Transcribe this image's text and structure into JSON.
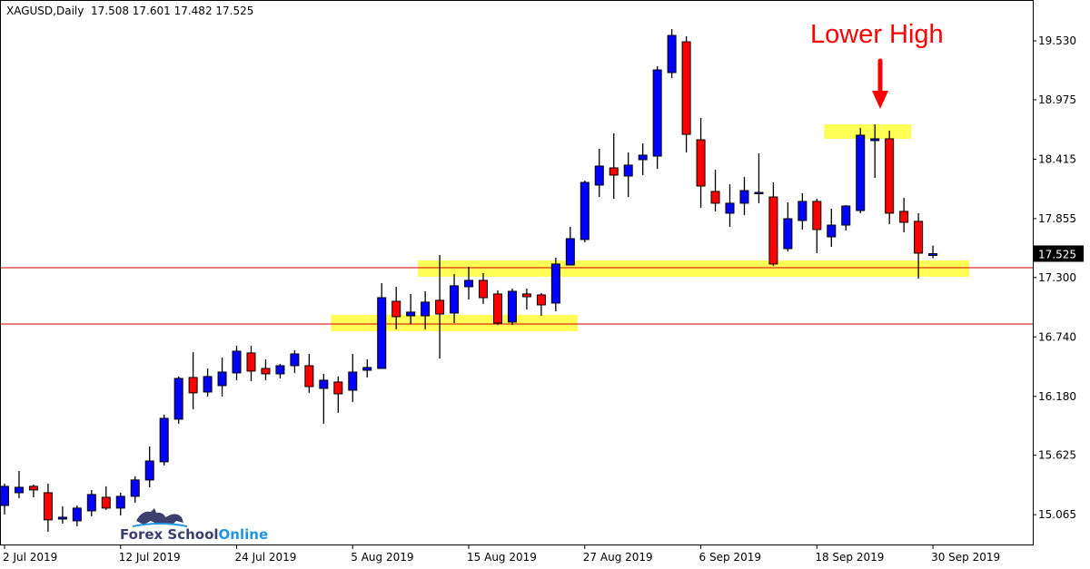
{
  "header": {
    "symbol": "XAGUSD,Daily",
    "ohlc": "17.508 17.601 17.482 17.525"
  },
  "annotation": {
    "text": "Lower High",
    "color": "#ff0000",
    "arrow": "arrow-down"
  },
  "logo": {
    "part1": "Forex School",
    "part2": "Online"
  },
  "chart_data": {
    "type": "candlestick",
    "title": "XAGUSD,Daily",
    "ylim": [
      14.784,
      19.915
    ],
    "grid": false,
    "colors": {
      "bull": "#0000ff",
      "bear": "#ff0000",
      "wick": "#000000",
      "zone": "#ffff55",
      "level_line": "#cc0000",
      "price_tag_bg": "#000000"
    },
    "y_ticks": [
      "19.530",
      "18.975",
      "18.415",
      "17.855",
      "17.300",
      "16.740",
      "16.180",
      "15.625",
      "15.065"
    ],
    "x_ticks": [
      {
        "date": "2019-07-02",
        "label": "2 Jul 2019"
      },
      {
        "date": "2019-07-12",
        "label": "12 Jul 2019"
      },
      {
        "date": "2019-07-24",
        "label": "24 Jul 2019"
      },
      {
        "date": "2019-08-05",
        "label": "5 Aug 2019"
      },
      {
        "date": "2019-08-15",
        "label": "15 Aug 2019"
      },
      {
        "date": "2019-08-27",
        "label": "27 Aug 2019"
      },
      {
        "date": "2019-09-06",
        "label": "6 Sep 2019"
      },
      {
        "date": "2019-09-18",
        "label": "18 Sep 2019"
      },
      {
        "date": "2019-09-30",
        "label": "30 Sep 2019"
      }
    ],
    "current_price": "17.525",
    "dates": [
      "2019-07-02",
      "2019-07-03",
      "2019-07-04",
      "2019-07-05",
      "2019-07-08",
      "2019-07-09",
      "2019-07-10",
      "2019-07-11",
      "2019-07-12",
      "2019-07-15",
      "2019-07-16",
      "2019-07-17",
      "2019-07-18",
      "2019-07-19",
      "2019-07-22",
      "2019-07-23",
      "2019-07-24",
      "2019-07-25",
      "2019-07-26",
      "2019-07-29",
      "2019-07-30",
      "2019-07-31",
      "2019-08-01",
      "2019-08-02",
      "2019-08-05",
      "2019-08-06",
      "2019-08-07",
      "2019-08-08",
      "2019-08-09",
      "2019-08-12",
      "2019-08-13",
      "2019-08-14",
      "2019-08-15",
      "2019-08-16",
      "2019-08-19",
      "2019-08-20",
      "2019-08-21",
      "2019-08-22",
      "2019-08-23",
      "2019-08-26",
      "2019-08-27",
      "2019-08-28",
      "2019-08-29",
      "2019-08-30",
      "2019-09-02",
      "2019-09-03",
      "2019-09-04",
      "2019-09-05",
      "2019-09-06",
      "2019-09-09",
      "2019-09-10",
      "2019-09-11",
      "2019-09-12",
      "2019-09-13",
      "2019-09-16",
      "2019-09-17",
      "2019-09-18",
      "2019-09-19",
      "2019-09-20",
      "2019-09-23",
      "2019-09-24",
      "2019-09-25",
      "2019-09-26",
      "2019-09-27",
      "2019-09-30"
    ],
    "ohlc": [
      [
        15.152,
        15.358,
        15.067,
        15.332
      ],
      [
        15.272,
        15.477,
        15.221,
        15.323
      ],
      [
        15.332,
        15.349,
        15.229,
        15.298
      ],
      [
        15.272,
        15.358,
        14.904,
        15.016
      ],
      [
        15.024,
        15.144,
        14.981,
        15.041
      ],
      [
        15.007,
        15.152,
        14.956,
        15.127
      ],
      [
        15.101,
        15.298,
        15.05,
        15.255
      ],
      [
        15.229,
        15.332,
        15.11,
        15.127
      ],
      [
        15.127,
        15.272,
        15.058,
        15.238
      ],
      [
        15.238,
        15.426,
        15.178,
        15.392
      ],
      [
        15.392,
        15.708,
        15.323,
        15.571
      ],
      [
        15.563,
        16.007,
        15.529,
        15.973
      ],
      [
        15.965,
        16.367,
        15.922,
        16.349
      ],
      [
        16.358,
        16.597,
        16.059,
        16.213
      ],
      [
        16.221,
        16.443,
        16.178,
        16.367
      ],
      [
        16.281,
        16.546,
        16.178,
        16.409
      ],
      [
        16.401,
        16.657,
        16.332,
        16.606
      ],
      [
        16.589,
        16.657,
        16.324,
        16.418
      ],
      [
        16.443,
        16.529,
        16.332,
        16.392
      ],
      [
        16.392,
        16.486,
        16.349,
        16.469
      ],
      [
        16.469,
        16.614,
        16.401,
        16.58
      ],
      [
        16.469,
        16.58,
        16.213,
        16.272
      ],
      [
        16.255,
        16.392,
        15.922,
        16.332
      ],
      [
        16.315,
        16.367,
        16.025,
        16.204
      ],
      [
        16.238,
        16.58,
        16.127,
        16.409
      ],
      [
        16.426,
        16.529,
        16.358,
        16.452
      ],
      [
        16.443,
        17.247,
        16.443,
        17.11
      ],
      [
        17.076,
        17.213,
        16.811,
        16.931
      ],
      [
        16.939,
        17.145,
        16.862,
        16.974
      ],
      [
        16.939,
        17.17,
        16.811,
        17.068
      ],
      [
        17.085,
        17.512,
        16.537,
        16.956
      ],
      [
        16.965,
        17.333,
        16.871,
        17.222
      ],
      [
        17.213,
        17.401,
        17.093,
        17.273
      ],
      [
        17.273,
        17.341,
        17.051,
        17.11
      ],
      [
        17.145,
        17.179,
        16.854,
        16.871
      ],
      [
        16.88,
        17.196,
        16.854,
        17.17
      ],
      [
        17.145,
        17.196,
        16.999,
        17.119
      ],
      [
        17.136,
        17.153,
        16.939,
        17.042
      ],
      [
        17.059,
        17.487,
        16.982,
        17.427
      ],
      [
        17.418,
        17.777,
        17.418,
        17.666
      ],
      [
        17.658,
        18.213,
        17.632,
        18.196
      ],
      [
        18.171,
        18.513,
        18.059,
        18.35
      ],
      [
        18.333,
        18.658,
        18.042,
        18.265
      ],
      [
        18.256,
        18.478,
        18.059,
        18.359
      ],
      [
        18.41,
        18.564,
        18.265,
        18.453
      ],
      [
        18.444,
        19.291,
        18.324,
        19.256
      ],
      [
        19.231,
        19.641,
        19.179,
        19.581
      ],
      [
        19.521,
        19.573,
        18.478,
        18.649
      ],
      [
        18.598,
        18.803,
        17.957,
        18.162
      ],
      [
        18.111,
        18.316,
        17.923,
        18.0
      ],
      [
        17.906,
        18.179,
        17.777,
        18.0
      ],
      [
        18.0,
        18.248,
        17.888,
        18.119
      ],
      [
        18.102,
        18.47,
        18.0,
        18.102
      ],
      [
        18.059,
        18.196,
        17.41,
        17.427
      ],
      [
        17.572,
        18.008,
        17.546,
        17.854
      ],
      [
        17.837,
        18.094,
        17.752,
        18.017
      ],
      [
        18.017,
        18.042,
        17.529,
        17.752
      ],
      [
        17.683,
        17.948,
        17.589,
        17.794
      ],
      [
        17.794,
        17.982,
        17.743,
        17.974
      ],
      [
        17.931,
        18.709,
        17.906,
        18.641
      ],
      [
        18.59,
        18.743,
        18.239,
        18.607
      ],
      [
        18.607,
        18.684,
        17.803,
        17.906
      ],
      [
        17.923,
        18.051,
        17.726,
        17.82
      ],
      [
        17.829,
        17.906,
        17.29,
        17.529
      ],
      [
        17.508,
        17.601,
        17.482,
        17.525
      ]
    ],
    "level_lines": [
      17.392,
      16.862
    ],
    "zones": [
      {
        "from": "2019-08-02",
        "to": "2019-08-26",
        "low": 16.794,
        "high": 16.948
      },
      {
        "from": "2019-08-12",
        "to": "2019-10-02",
        "low": 17.307,
        "high": 17.461
      },
      {
        "from": "2019-09-19",
        "to": "2019-09-26",
        "low": 18.607,
        "high": 18.743
      }
    ]
  }
}
